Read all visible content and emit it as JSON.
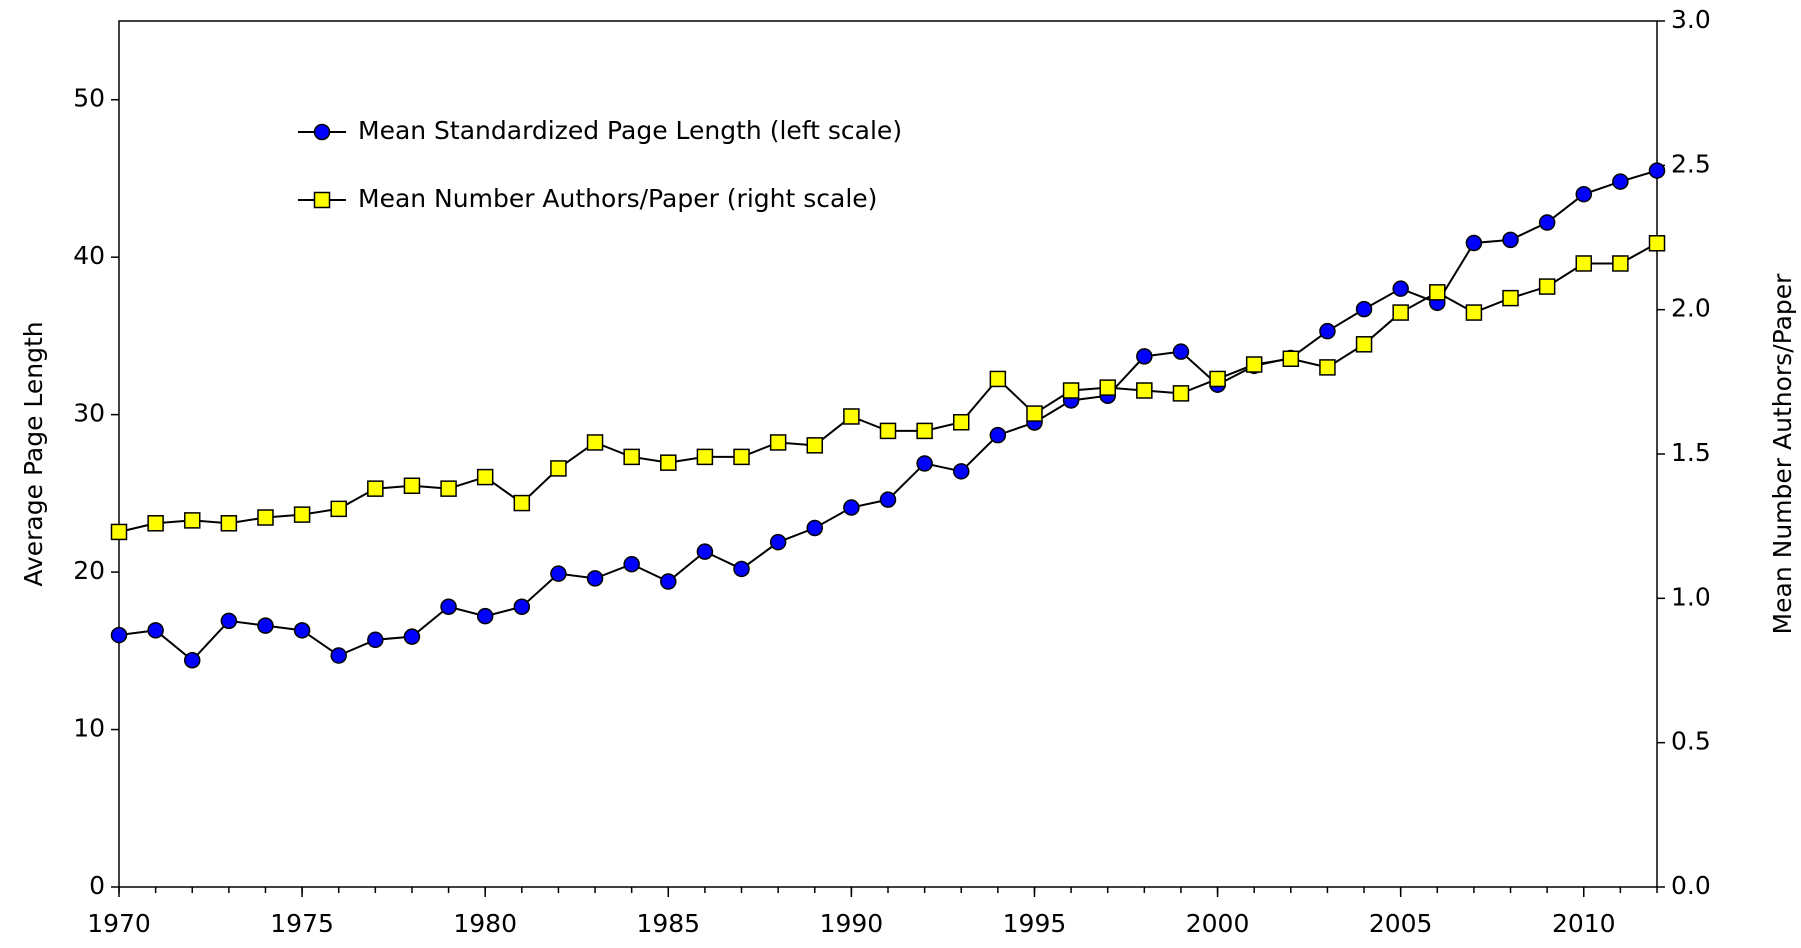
{
  "chart_data": {
    "type": "line",
    "x": [
      1970,
      1971,
      1972,
      1973,
      1974,
      1975,
      1976,
      1977,
      1978,
      1979,
      1980,
      1981,
      1982,
      1983,
      1984,
      1985,
      1986,
      1987,
      1988,
      1989,
      1990,
      1991,
      1992,
      1993,
      1994,
      1995,
      1996,
      1997,
      1998,
      1999,
      2000,
      2001,
      2002,
      2003,
      2004,
      2005,
      2006,
      2007,
      2008,
      2009,
      2010,
      2011,
      2012
    ],
    "series": [
      {
        "name": "Mean Standardized Page Length (left scale)",
        "color": "#0000ff",
        "marker": "circle",
        "values": [
          16.0,
          16.3,
          14.4,
          16.9,
          16.6,
          16.3,
          14.7,
          15.7,
          15.9,
          17.8,
          17.2,
          17.8,
          19.9,
          19.6,
          20.5,
          19.4,
          21.3,
          20.2,
          21.9,
          22.8,
          24.1,
          24.6,
          26.9,
          26.4,
          28.7,
          29.5,
          30.9,
          31.2,
          33.7,
          34.0,
          31.9,
          33.1,
          33.6,
          35.3,
          36.7,
          38.0,
          37.1,
          40.9,
          41.1,
          42.2,
          44.0,
          44.8,
          45.5
        ]
      },
      {
        "name": "Mean Number Authors/Paper (right scale)",
        "color": "#ffff00",
        "marker": "square",
        "axis": "y2",
        "values": [
          1.23,
          1.26,
          1.27,
          1.26,
          1.28,
          1.29,
          1.31,
          1.38,
          1.39,
          1.38,
          1.42,
          1.33,
          1.45,
          1.54,
          1.49,
          1.47,
          1.49,
          1.49,
          1.54,
          1.53,
          1.63,
          1.58,
          1.58,
          1.61,
          1.76,
          1.64,
          1.72,
          1.73,
          1.72,
          1.71,
          1.76,
          1.81,
          1.83,
          1.8,
          1.88,
          1.99,
          2.06,
          1.99,
          2.04,
          2.08,
          2.16,
          2.16,
          2.23
        ]
      }
    ],
    "ylabel": "Average Page Length",
    "y2label": "Mean Number Authors/Paper",
    "xlim": [
      1970,
      2012
    ],
    "xticks": [
      1970,
      1975,
      1980,
      1985,
      1990,
      1995,
      2000,
      2005,
      2010
    ],
    "ylim": [
      0,
      55
    ],
    "yticks": [
      0,
      10,
      20,
      30,
      40,
      50
    ],
    "y2lim": [
      0,
      3
    ],
    "y2ticks": [
      {
        "value": 0,
        "label": "0.0"
      },
      0.5,
      {
        "value": 1,
        "label": "1.0"
      },
      1.5,
      {
        "value": 2,
        "label": "2.0"
      },
      2.5,
      {
        "value": 3,
        "label": "3.0"
      }
    ],
    "legend": "upper left",
    "grid": false
  }
}
